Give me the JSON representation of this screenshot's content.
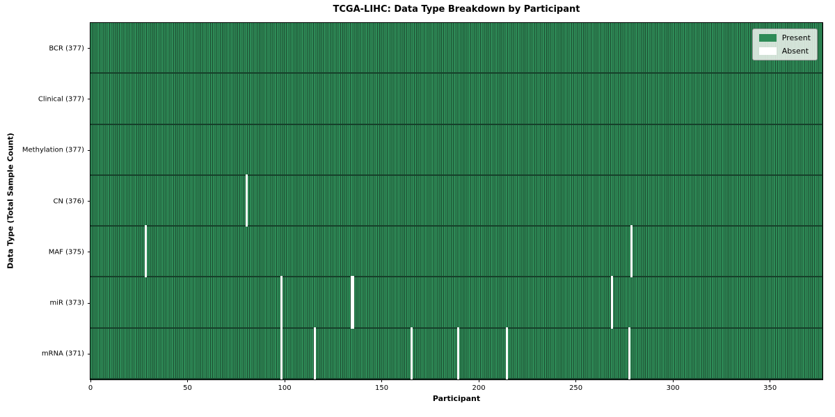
{
  "title": "TCGA-LIHC: Data Type Breakdown by Participant",
  "xlabel": "Participant",
  "ylabel": "Data Type (Total Sample Count)",
  "legend": {
    "items": [
      {
        "label": "Present",
        "color": "#2e8b57"
      },
      {
        "label": "Absent",
        "color": "#ffffff"
      }
    ]
  },
  "colors": {
    "present": "#2e8b57",
    "cell_edge": "#1d4d31",
    "row_separator": "#16402a",
    "absent": "#ffffff"
  },
  "chart_data": {
    "type": "heatmap",
    "title": "TCGA-LIHC: Data Type Breakdown by Participant",
    "xlabel": "Participant",
    "ylabel": "Data Type (Total Sample Count)",
    "x_ticks": [
      0,
      50,
      100,
      150,
      200,
      250,
      300,
      350
    ],
    "x_range": [
      0,
      377
    ],
    "n_participants": 377,
    "legend_position": "upper right",
    "rows": [
      {
        "label": "BCR (377)",
        "data_type": "BCR",
        "total": 377,
        "absent_participants": []
      },
      {
        "label": "Clinical (377)",
        "data_type": "Clinical",
        "total": 377,
        "absent_participants": []
      },
      {
        "label": "Methylation (377)",
        "data_type": "Methylation",
        "total": 377,
        "absent_participants": []
      },
      {
        "label": "CN (376)",
        "data_type": "CN",
        "total": 376,
        "absent_participants": [
          80
        ]
      },
      {
        "label": "MAF (375)",
        "data_type": "MAF",
        "total": 375,
        "absent_participants": [
          28,
          278
        ]
      },
      {
        "label": "miR (373)",
        "data_type": "miR",
        "total": 373,
        "absent_participants": [
          98,
          134,
          135,
          268
        ]
      },
      {
        "label": "mRNA (371)",
        "data_type": "mRNA",
        "total": 371,
        "absent_participants": [
          98,
          115,
          165,
          189,
          214,
          277
        ]
      }
    ]
  }
}
